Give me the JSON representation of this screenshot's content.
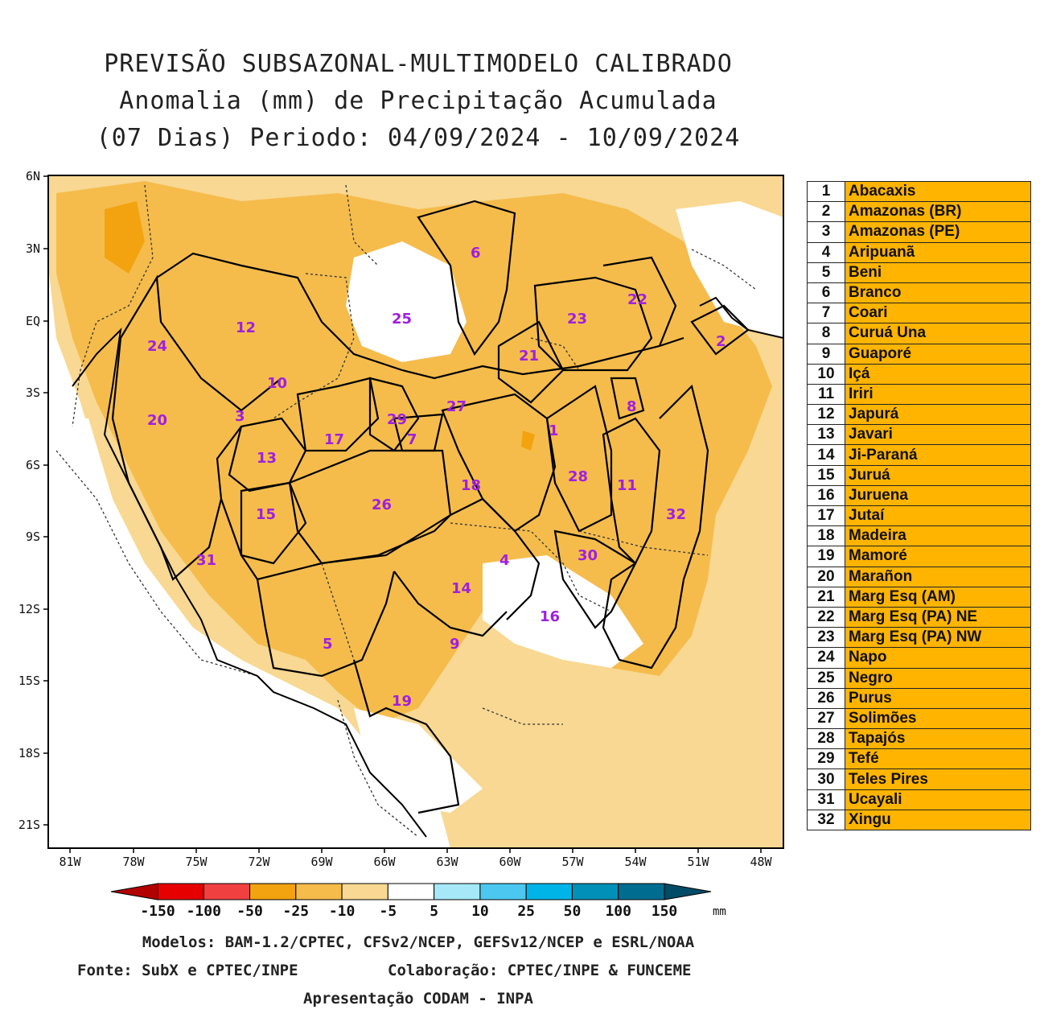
{
  "title": {
    "line1": "PREVISÃO SUBSAZONAL-MULTIMODELO CALIBRADO",
    "line2": "Anomalia (mm) de Precipitação Acumulada",
    "line3": "(07 Dias) Periodo: 04/09/2024 - 10/09/2024"
  },
  "axes": {
    "lat_labels": [
      "6N",
      "3N",
      "EQ",
      "3S",
      "6S",
      "9S",
      "12S",
      "15S",
      "18S",
      "21S"
    ],
    "lon_labels": [
      "81W",
      "78W",
      "75W",
      "72W",
      "69W",
      "66W",
      "63W",
      "60W",
      "57W",
      "54W",
      "51W",
      "48W"
    ]
  },
  "basins": [
    {
      "num": "1",
      "name": "Abacaxis"
    },
    {
      "num": "2",
      "name": "Amazonas (BR)"
    },
    {
      "num": "3",
      "name": "Amazonas (PE)"
    },
    {
      "num": "4",
      "name": "Aripuanã"
    },
    {
      "num": "5",
      "name": "Beni"
    },
    {
      "num": "6",
      "name": "Branco"
    },
    {
      "num": "7",
      "name": "Coari"
    },
    {
      "num": "8",
      "name": "Curuá Una"
    },
    {
      "num": "9",
      "name": "Guaporé"
    },
    {
      "num": "10",
      "name": "Içá"
    },
    {
      "num": "11",
      "name": "Iriri"
    },
    {
      "num": "12",
      "name": "Japurá"
    },
    {
      "num": "13",
      "name": "Javari"
    },
    {
      "num": "14",
      "name": "Ji-Paraná"
    },
    {
      "num": "15",
      "name": "Juruá"
    },
    {
      "num": "16",
      "name": "Juruena"
    },
    {
      "num": "17",
      "name": "Jutaí"
    },
    {
      "num": "18",
      "name": "Madeira"
    },
    {
      "num": "19",
      "name": "Mamoré"
    },
    {
      "num": "20",
      "name": "Marañon"
    },
    {
      "num": "21",
      "name": "Marg Esq (AM)"
    },
    {
      "num": "22",
      "name": "Marg Esq (PA) NE"
    },
    {
      "num": "23",
      "name": "Marg Esq (PA) NW"
    },
    {
      "num": "24",
      "name": "Napo"
    },
    {
      "num": "25",
      "name": "Negro"
    },
    {
      "num": "26",
      "name": "Purus"
    },
    {
      "num": "27",
      "name": "Solimões"
    },
    {
      "num": "28",
      "name": "Tapajós"
    },
    {
      "num": "29",
      "name": "Tefé"
    },
    {
      "num": "30",
      "name": "Teles Pires"
    },
    {
      "num": "31",
      "name": "Ucayali"
    },
    {
      "num": "32",
      "name": "Xingu"
    }
  ],
  "colorbar": {
    "labels": [
      "-150",
      "-100",
      "-50",
      "-25",
      "-10",
      "-5",
      "5",
      "10",
      "25",
      "50",
      "100",
      "150"
    ],
    "unit": "mm",
    "colors": [
      "#b30000",
      "#e60000",
      "#f04040",
      "#f2a30f",
      "#f5bc4c",
      "#f8d892",
      "#ffffff",
      "#a6e8f7",
      "#4cc8f0",
      "#00b4e8",
      "#0090b8",
      "#006c90",
      "#004c66"
    ]
  },
  "credits": {
    "models": "Modelos: BAM-1.2/CPTEC, CFSv2/NCEP, GEFSv12/NCEP e ESRL/NOAA",
    "source": "Fonte: SubX e CPTEC/INPE",
    "collab": "Colaboração: CPTEC/INPE & FUNCEME",
    "presentation": "Apresentação CODAM - INPA"
  }
}
